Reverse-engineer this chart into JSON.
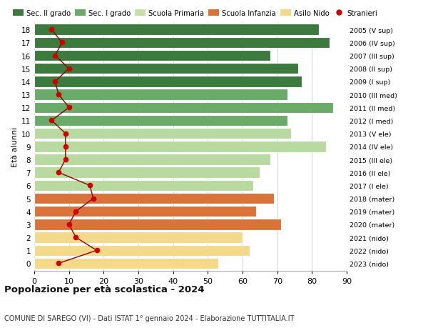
{
  "ages": [
    18,
    17,
    16,
    15,
    14,
    13,
    12,
    11,
    10,
    9,
    8,
    7,
    6,
    5,
    4,
    3,
    2,
    1,
    0
  ],
  "right_labels": [
    "2005 (V sup)",
    "2006 (IV sup)",
    "2007 (III sup)",
    "2008 (II sup)",
    "2009 (I sup)",
    "2010 (III med)",
    "2011 (II med)",
    "2012 (I med)",
    "2013 (V ele)",
    "2014 (IV ele)",
    "2015 (III ele)",
    "2016 (II ele)",
    "2017 (I ele)",
    "2018 (mater)",
    "2019 (mater)",
    "2020 (mater)",
    "2021 (nido)",
    "2022 (nido)",
    "2023 (nido)"
  ],
  "bar_values": [
    82,
    85,
    68,
    76,
    77,
    73,
    86,
    73,
    74,
    84,
    68,
    65,
    63,
    69,
    64,
    71,
    60,
    62,
    53
  ],
  "bar_colors": [
    "#3d7a3d",
    "#3d7a3d",
    "#3d7a3d",
    "#3d7a3d",
    "#3d7a3d",
    "#6aab6a",
    "#6aab6a",
    "#6aab6a",
    "#b8d9a0",
    "#b8d9a0",
    "#b8d9a0",
    "#b8d9a0",
    "#b8d9a0",
    "#d9733a",
    "#d9733a",
    "#d9733a",
    "#f5d98a",
    "#f5d98a",
    "#f5d98a"
  ],
  "stranieri_values": [
    5,
    8,
    6,
    10,
    6,
    7,
    10,
    5,
    9,
    9,
    9,
    7,
    16,
    17,
    12,
    10,
    12,
    18,
    7
  ],
  "legend_labels": [
    "Sec. II grado",
    "Sec. I grado",
    "Scuola Primaria",
    "Scuola Infanzia",
    "Asilo Nido",
    "Stranieri"
  ],
  "legend_colors": [
    "#3d7a3d",
    "#6aab6a",
    "#c8dfa8",
    "#d9733a",
    "#f5d98a",
    "#cc0000"
  ],
  "ylabel": "Età alunni",
  "title": "Popolazione per età scolastica - 2024",
  "subtitle": "COMUNE DI SAREGO (VI) - Dati ISTAT 1° gennaio 2024 - Elaborazione TUTTITALIA.IT",
  "xlim": [
    0,
    90
  ],
  "background_color": "#ffffff",
  "grid_color": "#cccccc",
  "stranieri_line_color": "#8b0000",
  "stranieri_dot_color": "#cc0000"
}
